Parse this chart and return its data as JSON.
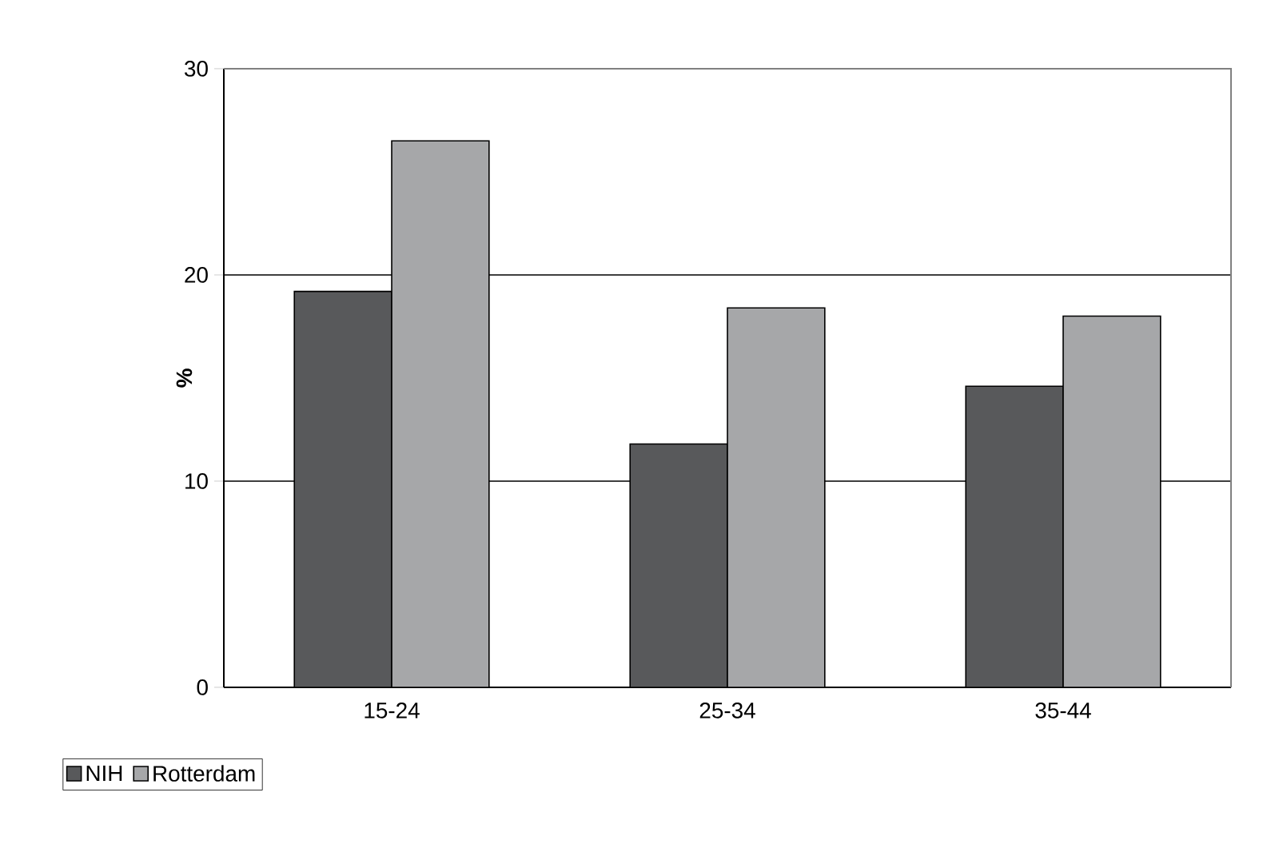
{
  "chart_data": {
    "type": "bar",
    "ylabel": "%",
    "categories": [
      "15-24",
      "25-34",
      "35-44"
    ],
    "series": [
      {
        "name": "NIH",
        "color": "#58595b",
        "values": [
          19.2,
          11.8,
          14.6
        ]
      },
      {
        "name": "Rotterdam",
        "color": "#a6a7a9",
        "values": [
          26.5,
          18.4,
          18.0
        ]
      }
    ],
    "ylim": [
      0,
      30
    ],
    "yticks": [
      0,
      10,
      20,
      30
    ],
    "grid": "y",
    "legend": "bottom left"
  }
}
